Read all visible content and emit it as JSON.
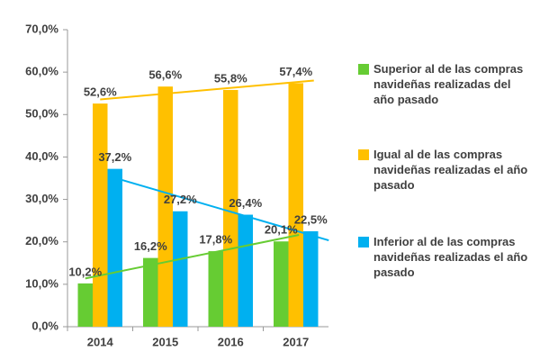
{
  "chart_data": {
    "type": "bar",
    "categories": [
      "2014",
      "2015",
      "2016",
      "2017"
    ],
    "series": [
      {
        "name": "Superior al de las compras navideñas realizadas del año pasado",
        "color": "#66cc33",
        "values": [
          10.2,
          16.2,
          17.8,
          20.1
        ],
        "value_labels": [
          "10,2%",
          "16,2%",
          "17,8%",
          "20,1%"
        ]
      },
      {
        "name": "Igual al de las compras navideñas realizadas el año pasado",
        "color": "#ffc000",
        "values": [
          52.6,
          56.6,
          55.8,
          57.4
        ],
        "value_labels": [
          "52,6%",
          "56,6%",
          "55,8%",
          "57,4%"
        ]
      },
      {
        "name": "Inferior al de las compras navideñas realizadas el año pasado",
        "color": "#00b0f0",
        "values": [
          37.2,
          27.2,
          26.4,
          22.5
        ],
        "value_labels": [
          "37,2%",
          "27,2%",
          "26,4%",
          "22,5%"
        ]
      }
    ],
    "ylim": [
      0,
      70
    ],
    "yticks": [
      {
        "value": 0,
        "label": "0,0%"
      },
      {
        "value": 10,
        "label": "10,0%"
      },
      {
        "value": 20,
        "label": "20,0%"
      },
      {
        "value": 30,
        "label": "30,0%"
      },
      {
        "value": 40,
        "label": "40,0%"
      },
      {
        "value": 50,
        "label": "50,0%"
      },
      {
        "value": 60,
        "label": "60,0%"
      },
      {
        "value": 70,
        "label": "70,0%"
      }
    ],
    "trendline": true,
    "legend": "right"
  }
}
